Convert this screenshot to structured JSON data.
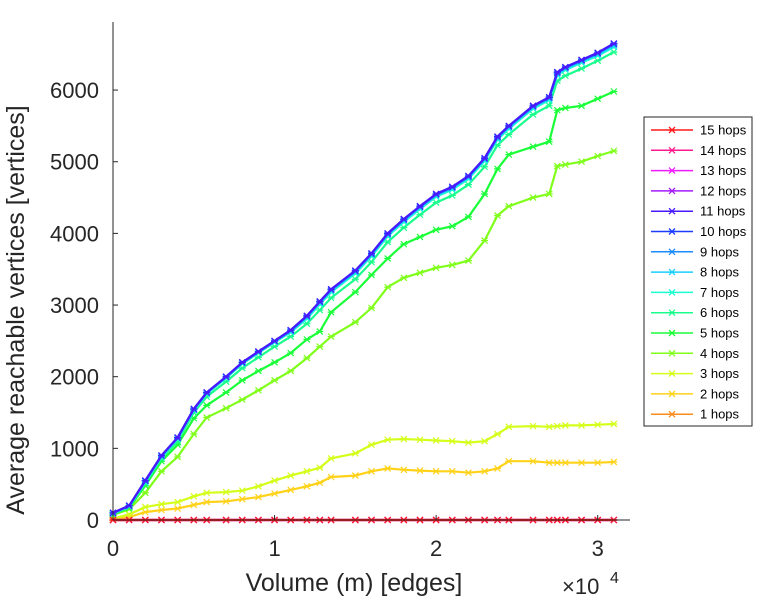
{
  "chart_data": {
    "type": "line",
    "xlabel": "Volume (m) [edges]",
    "ylabel": "Average reachable vertices [vertices]",
    "xlim": [
      0,
      32000
    ],
    "ylim": [
      0,
      6950
    ],
    "x_ticks": [
      0,
      10000,
      20000,
      30000
    ],
    "x_tick_labels": [
      "0",
      "1",
      "2",
      "3"
    ],
    "x_multiplier": {
      "base": "×10",
      "exponent": "4"
    },
    "y_ticks": [
      0,
      1000,
      2000,
      3000,
      4000,
      5000,
      6000
    ],
    "y_tick_labels": [
      "0",
      "1000",
      "2000",
      "3000",
      "4000",
      "5000",
      "6000"
    ],
    "x": [
      0,
      1000,
      2000,
      3000,
      4000,
      5000,
      5800,
      7000,
      8000,
      9000,
      10000,
      11000,
      12000,
      12800,
      13500,
      15000,
      16000,
      17000,
      18000,
      19000,
      20000,
      21000,
      22000,
      23000,
      23800,
      24500,
      26000,
      27000,
      27500,
      28000,
      29000,
      30000,
      31000
    ],
    "series": [
      {
        "name": "15 hops",
        "color": "#ff1a1a",
        "values": [
          0,
          0,
          0,
          0,
          0,
          0,
          0,
          0,
          0,
          0,
          0,
          0,
          0,
          0,
          0,
          0,
          0,
          0,
          0,
          0,
          0,
          0,
          0,
          0,
          0,
          0,
          0,
          0,
          0,
          0,
          0,
          0,
          0
        ]
      },
      {
        "name": "14 hops",
        "color": "#ff1a8c",
        "values": [
          0,
          0,
          0,
          0,
          0,
          0,
          0,
          0,
          0,
          0,
          0,
          0,
          0,
          0,
          0,
          0,
          0,
          0,
          0,
          0,
          0,
          0,
          0,
          0,
          0,
          0,
          0,
          0,
          0,
          0,
          0,
          0,
          0
        ]
      },
      {
        "name": "13 hops",
        "color": "#f01aff",
        "values": [
          0,
          0,
          0,
          0,
          0,
          0,
          0,
          0,
          0,
          0,
          0,
          0,
          0,
          0,
          0,
          0,
          0,
          0,
          0,
          0,
          0,
          0,
          0,
          0,
          0,
          0,
          0,
          0,
          0,
          0,
          0,
          0,
          0
        ]
      },
      {
        "name": "12 hops",
        "color": "#a21aff",
        "values": [
          0,
          0,
          0,
          0,
          0,
          0,
          0,
          0,
          0,
          0,
          0,
          0,
          0,
          0,
          0,
          0,
          0,
          0,
          0,
          0,
          0,
          0,
          0,
          0,
          0,
          0,
          0,
          0,
          0,
          0,
          0,
          0,
          0
        ]
      },
      {
        "name": "11 hops",
        "color": "#4a1aff",
        "values": [
          100,
          200,
          550,
          900,
          1150,
          1550,
          1780,
          2000,
          2200,
          2350,
          2500,
          2650,
          2850,
          3050,
          3220,
          3480,
          3720,
          4000,
          4200,
          4380,
          4550,
          4650,
          4800,
          5050,
          5350,
          5500,
          5780,
          5900,
          6250,
          6320,
          6420,
          6520,
          6650
        ]
      },
      {
        "name": "10 hops",
        "color": "#1a3cff",
        "values": [
          100,
          200,
          550,
          900,
          1150,
          1550,
          1780,
          2000,
          2200,
          2350,
          2500,
          2650,
          2850,
          3050,
          3220,
          3480,
          3720,
          4000,
          4200,
          4380,
          4550,
          4650,
          4800,
          5050,
          5350,
          5500,
          5780,
          5900,
          6250,
          6320,
          6420,
          6520,
          6650
        ]
      },
      {
        "name": "9 hops",
        "color": "#1a8cff",
        "values": [
          98,
          198,
          545,
          895,
          1145,
          1545,
          1775,
          1995,
          2195,
          2345,
          2495,
          2640,
          2840,
          3040,
          3210,
          3470,
          3710,
          3990,
          4190,
          4370,
          4540,
          4640,
          4790,
          5040,
          5340,
          5490,
          5770,
          5890,
          6240,
          6310,
          6410,
          6510,
          6640
        ]
      },
      {
        "name": "8 hops",
        "color": "#1acfff",
        "values": [
          95,
          195,
          540,
          890,
          1140,
          1540,
          1770,
          1990,
          2190,
          2340,
          2490,
          2630,
          2830,
          3030,
          3200,
          3460,
          3700,
          3980,
          4180,
          4360,
          4530,
          4630,
          4780,
          5030,
          5330,
          5480,
          5760,
          5880,
          6230,
          6300,
          6400,
          6500,
          6620
        ]
      },
      {
        "name": "7 hops",
        "color": "#1affd1",
        "values": [
          90,
          190,
          530,
          880,
          1130,
          1530,
          1760,
          1980,
          2180,
          2330,
          2480,
          2620,
          2810,
          3010,
          3180,
          3440,
          3680,
          3960,
          4160,
          4340,
          4510,
          4610,
          4760,
          5010,
          5310,
          5460,
          5740,
          5860,
          6210,
          6280,
          6380,
          6480,
          6600
        ]
      },
      {
        "name": "6 hops",
        "color": "#1aff8c",
        "values": [
          85,
          180,
          510,
          860,
          1100,
          1500,
          1720,
          1930,
          2120,
          2270,
          2420,
          2560,
          2740,
          2930,
          3100,
          3360,
          3600,
          3880,
          4080,
          4260,
          4430,
          4530,
          4680,
          4930,
          5230,
          5380,
          5660,
          5780,
          6130,
          6200,
          6300,
          6410,
          6530
        ]
      },
      {
        "name": "5 hops",
        "color": "#1aff38",
        "values": [
          80,
          170,
          480,
          820,
          1050,
          1420,
          1600,
          1780,
          1950,
          2080,
          2200,
          2330,
          2520,
          2630,
          2900,
          3180,
          3420,
          3650,
          3850,
          3950,
          4050,
          4100,
          4230,
          4550,
          4900,
          5100,
          5210,
          5280,
          5720,
          5750,
          5780,
          5880,
          5980
        ]
      },
      {
        "name": "4 hops",
        "color": "#7fff1a",
        "values": [
          70,
          150,
          380,
          680,
          880,
          1200,
          1430,
          1560,
          1680,
          1810,
          1950,
          2080,
          2260,
          2420,
          2560,
          2760,
          2960,
          3250,
          3380,
          3450,
          3520,
          3560,
          3620,
          3900,
          4250,
          4380,
          4500,
          4550,
          4940,
          4960,
          5000,
          5080,
          5150
        ]
      },
      {
        "name": "3 hops",
        "color": "#d4ff1a",
        "values": [
          20,
          80,
          180,
          220,
          250,
          330,
          380,
          390,
          410,
          470,
          550,
          620,
          680,
          730,
          860,
          930,
          1050,
          1120,
          1130,
          1120,
          1110,
          1100,
          1080,
          1100,
          1200,
          1300,
          1310,
          1300,
          1310,
          1320,
          1320,
          1330,
          1340
        ]
      },
      {
        "name": "2 hops",
        "color": "#ffd21a",
        "values": [
          10,
          40,
          110,
          140,
          160,
          210,
          250,
          260,
          290,
          320,
          370,
          420,
          470,
          520,
          600,
          620,
          680,
          720,
          700,
          690,
          680,
          680,
          660,
          680,
          720,
          820,
          820,
          800,
          800,
          800,
          800,
          800,
          810
        ]
      },
      {
        "name": "1 hops",
        "color": "#ff8c1a",
        "values": [
          0,
          0,
          0,
          0,
          0,
          0,
          0,
          0,
          0,
          0,
          0,
          0,
          0,
          0,
          0,
          0,
          0,
          0,
          0,
          0,
          0,
          0,
          0,
          0,
          0,
          0,
          0,
          0,
          0,
          0,
          0,
          0,
          0
        ]
      }
    ]
  }
}
